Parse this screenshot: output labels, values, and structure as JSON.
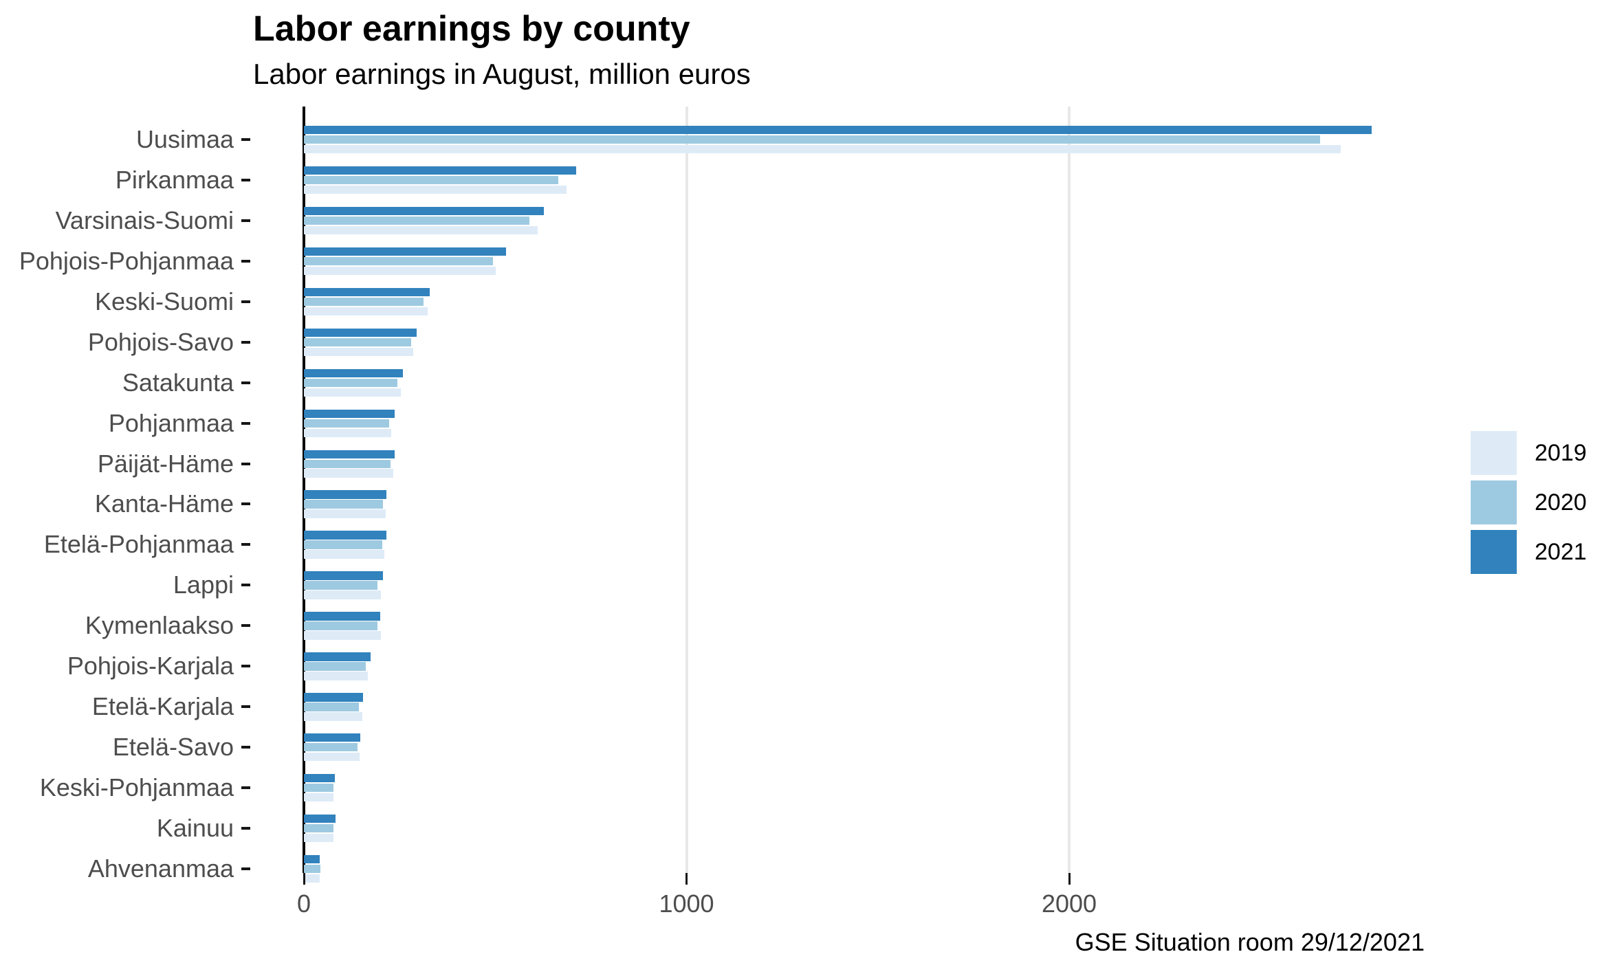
{
  "chart": {
    "title": "Labor earnings by county",
    "subtitle": "Labor earnings in August, million euros",
    "caption": "GSE Situation room 29/12/2021"
  },
  "chart_data": {
    "type": "bar",
    "orientation": "horizontal",
    "title": "Labor earnings by county",
    "subtitle": "Labor earnings in August, million euros",
    "caption": "GSE Situation room 29/12/2021",
    "xlabel": "",
    "ylabel": "",
    "x_ticks": [
      0,
      1000,
      2000
    ],
    "xlim": [
      0,
      2930
    ],
    "grid": "vertical major gridlines at 1000 and 2000, light gray on white",
    "legend_position": "right",
    "bar_order_top_to_bottom": [
      "2021",
      "2020",
      "2019"
    ],
    "categories": [
      "Uusimaa",
      "Pirkanmaa",
      "Varsinais-Suomi",
      "Pohjois-Pohjanmaa",
      "Keski-Suomi",
      "Pohjois-Savo",
      "Satakunta",
      "Pohjanmaa",
      "Päijät-Häme",
      "Kanta-Häme",
      "Etelä-Pohjanmaa",
      "Lappi",
      "Kymenlaakso",
      "Pohjois-Karjala",
      "Etelä-Karjala",
      "Etelä-Savo",
      "Keski-Pohjanmaa",
      "Kainuu",
      "Ahvenanmaa"
    ],
    "series": [
      {
        "name": "2019",
        "color": "#deebf7",
        "values": [
          2710,
          686,
          611,
          501,
          324,
          286,
          253,
          229,
          233,
          213,
          210,
          202,
          202,
          168,
          152,
          146,
          78,
          78,
          42
        ]
      },
      {
        "name": "2020",
        "color": "#9ecae1",
        "values": [
          2655,
          664,
          589,
          495,
          312,
          280,
          244,
          223,
          227,
          207,
          205,
          193,
          193,
          162,
          144,
          141,
          77,
          77,
          43
        ]
      },
      {
        "name": "2021",
        "color": "#3182bd",
        "values": [
          2790,
          711,
          627,
          528,
          329,
          294,
          259,
          237,
          238,
          216,
          216,
          207,
          200,
          174,
          154,
          148,
          81,
          82,
          41
        ]
      }
    ]
  },
  "legend": {
    "items": [
      {
        "label": "2019",
        "color": "#deebf7"
      },
      {
        "label": "2020",
        "color": "#9ecae1"
      },
      {
        "label": "2021",
        "color": "#3182bd"
      }
    ]
  },
  "colors": {
    "background": "#ffffff",
    "axis_text": "#4d4d4d",
    "gridline": "#e8e8e8",
    "zero_line": "#000000",
    "series_2019": "#deebf7",
    "series_2020": "#9ecae1",
    "series_2021": "#3182bd"
  }
}
